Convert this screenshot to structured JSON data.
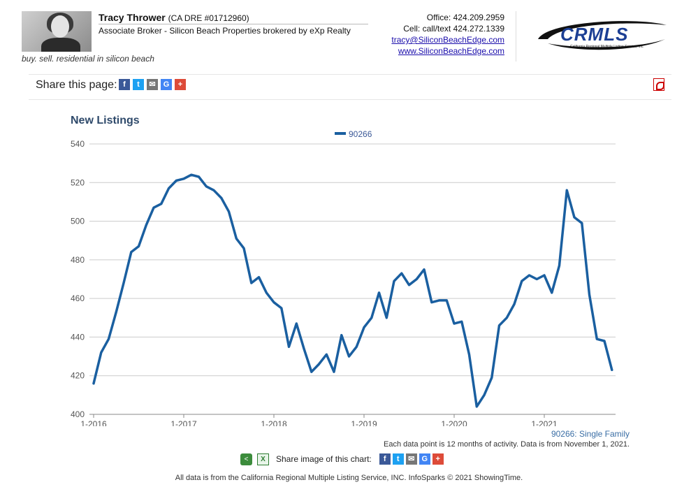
{
  "header": {
    "agent_name": "Tracy Thrower",
    "agent_dre": "(CA DRE #01712960)",
    "agent_title": "Associate Broker - Silicon Beach Properties brokered by eXp Realty",
    "tagline": "buy. sell. residential in silicon beach",
    "office": "Office: 424.209.2959",
    "cell": "Cell: call/text 424.272.1339",
    "email": "tracy@SiliconBeachEdge.com",
    "website": "www.SiliconBeachEdge.com",
    "logo_text": "CRMLS",
    "logo_subtext": "California Regional Multiple Listing Service, Inc."
  },
  "share": {
    "label": "Share this page:",
    "icons": [
      "facebook-icon",
      "twitter-icon",
      "email-icon",
      "google-icon",
      "plus-icon"
    ],
    "pdf_icon": "pdf-icon"
  },
  "colors": {
    "series": "#1a5fa0",
    "title": "#2f4a6b",
    "grid": "#cccccc"
  },
  "chart_data": {
    "type": "line",
    "title": "New Listings",
    "legend_position": "top-center",
    "grid": true,
    "ylim": [
      400,
      540
    ],
    "yticks": [
      400,
      420,
      440,
      460,
      480,
      500,
      520,
      540
    ],
    "xticks": [
      "1-2016",
      "1-2017",
      "1-2018",
      "1-2019",
      "1-2020",
      "1-2021"
    ],
    "series": [
      {
        "name": "90266",
        "start": "1-2016",
        "end": "10-2021",
        "values": [
          416,
          432,
          439,
          453,
          468,
          484,
          487,
          498,
          507,
          509,
          517,
          521,
          522,
          524,
          523,
          518,
          516,
          512,
          505,
          491,
          486,
          468,
          471,
          463,
          458,
          455,
          435,
          447,
          434,
          422,
          426,
          431,
          422,
          441,
          430,
          435,
          445,
          450,
          463,
          450,
          469,
          473,
          467,
          470,
          475,
          458,
          459,
          459,
          447,
          448,
          431,
          404,
          410,
          419,
          446,
          450,
          457,
          469,
          472,
          470,
          472,
          463,
          477,
          516,
          502,
          499,
          462,
          439,
          438,
          423
        ]
      }
    ]
  },
  "notes": {
    "series_desc": "90266: Single Family",
    "data_note": "Each data point is 12 months of activity. Data is from November 1, 2021."
  },
  "share_image": {
    "label": "Share image of this chart:"
  },
  "footer": "All data is from the California Regional Multiple Listing Service, INC. InfoSparks © 2021 ShowingTime."
}
